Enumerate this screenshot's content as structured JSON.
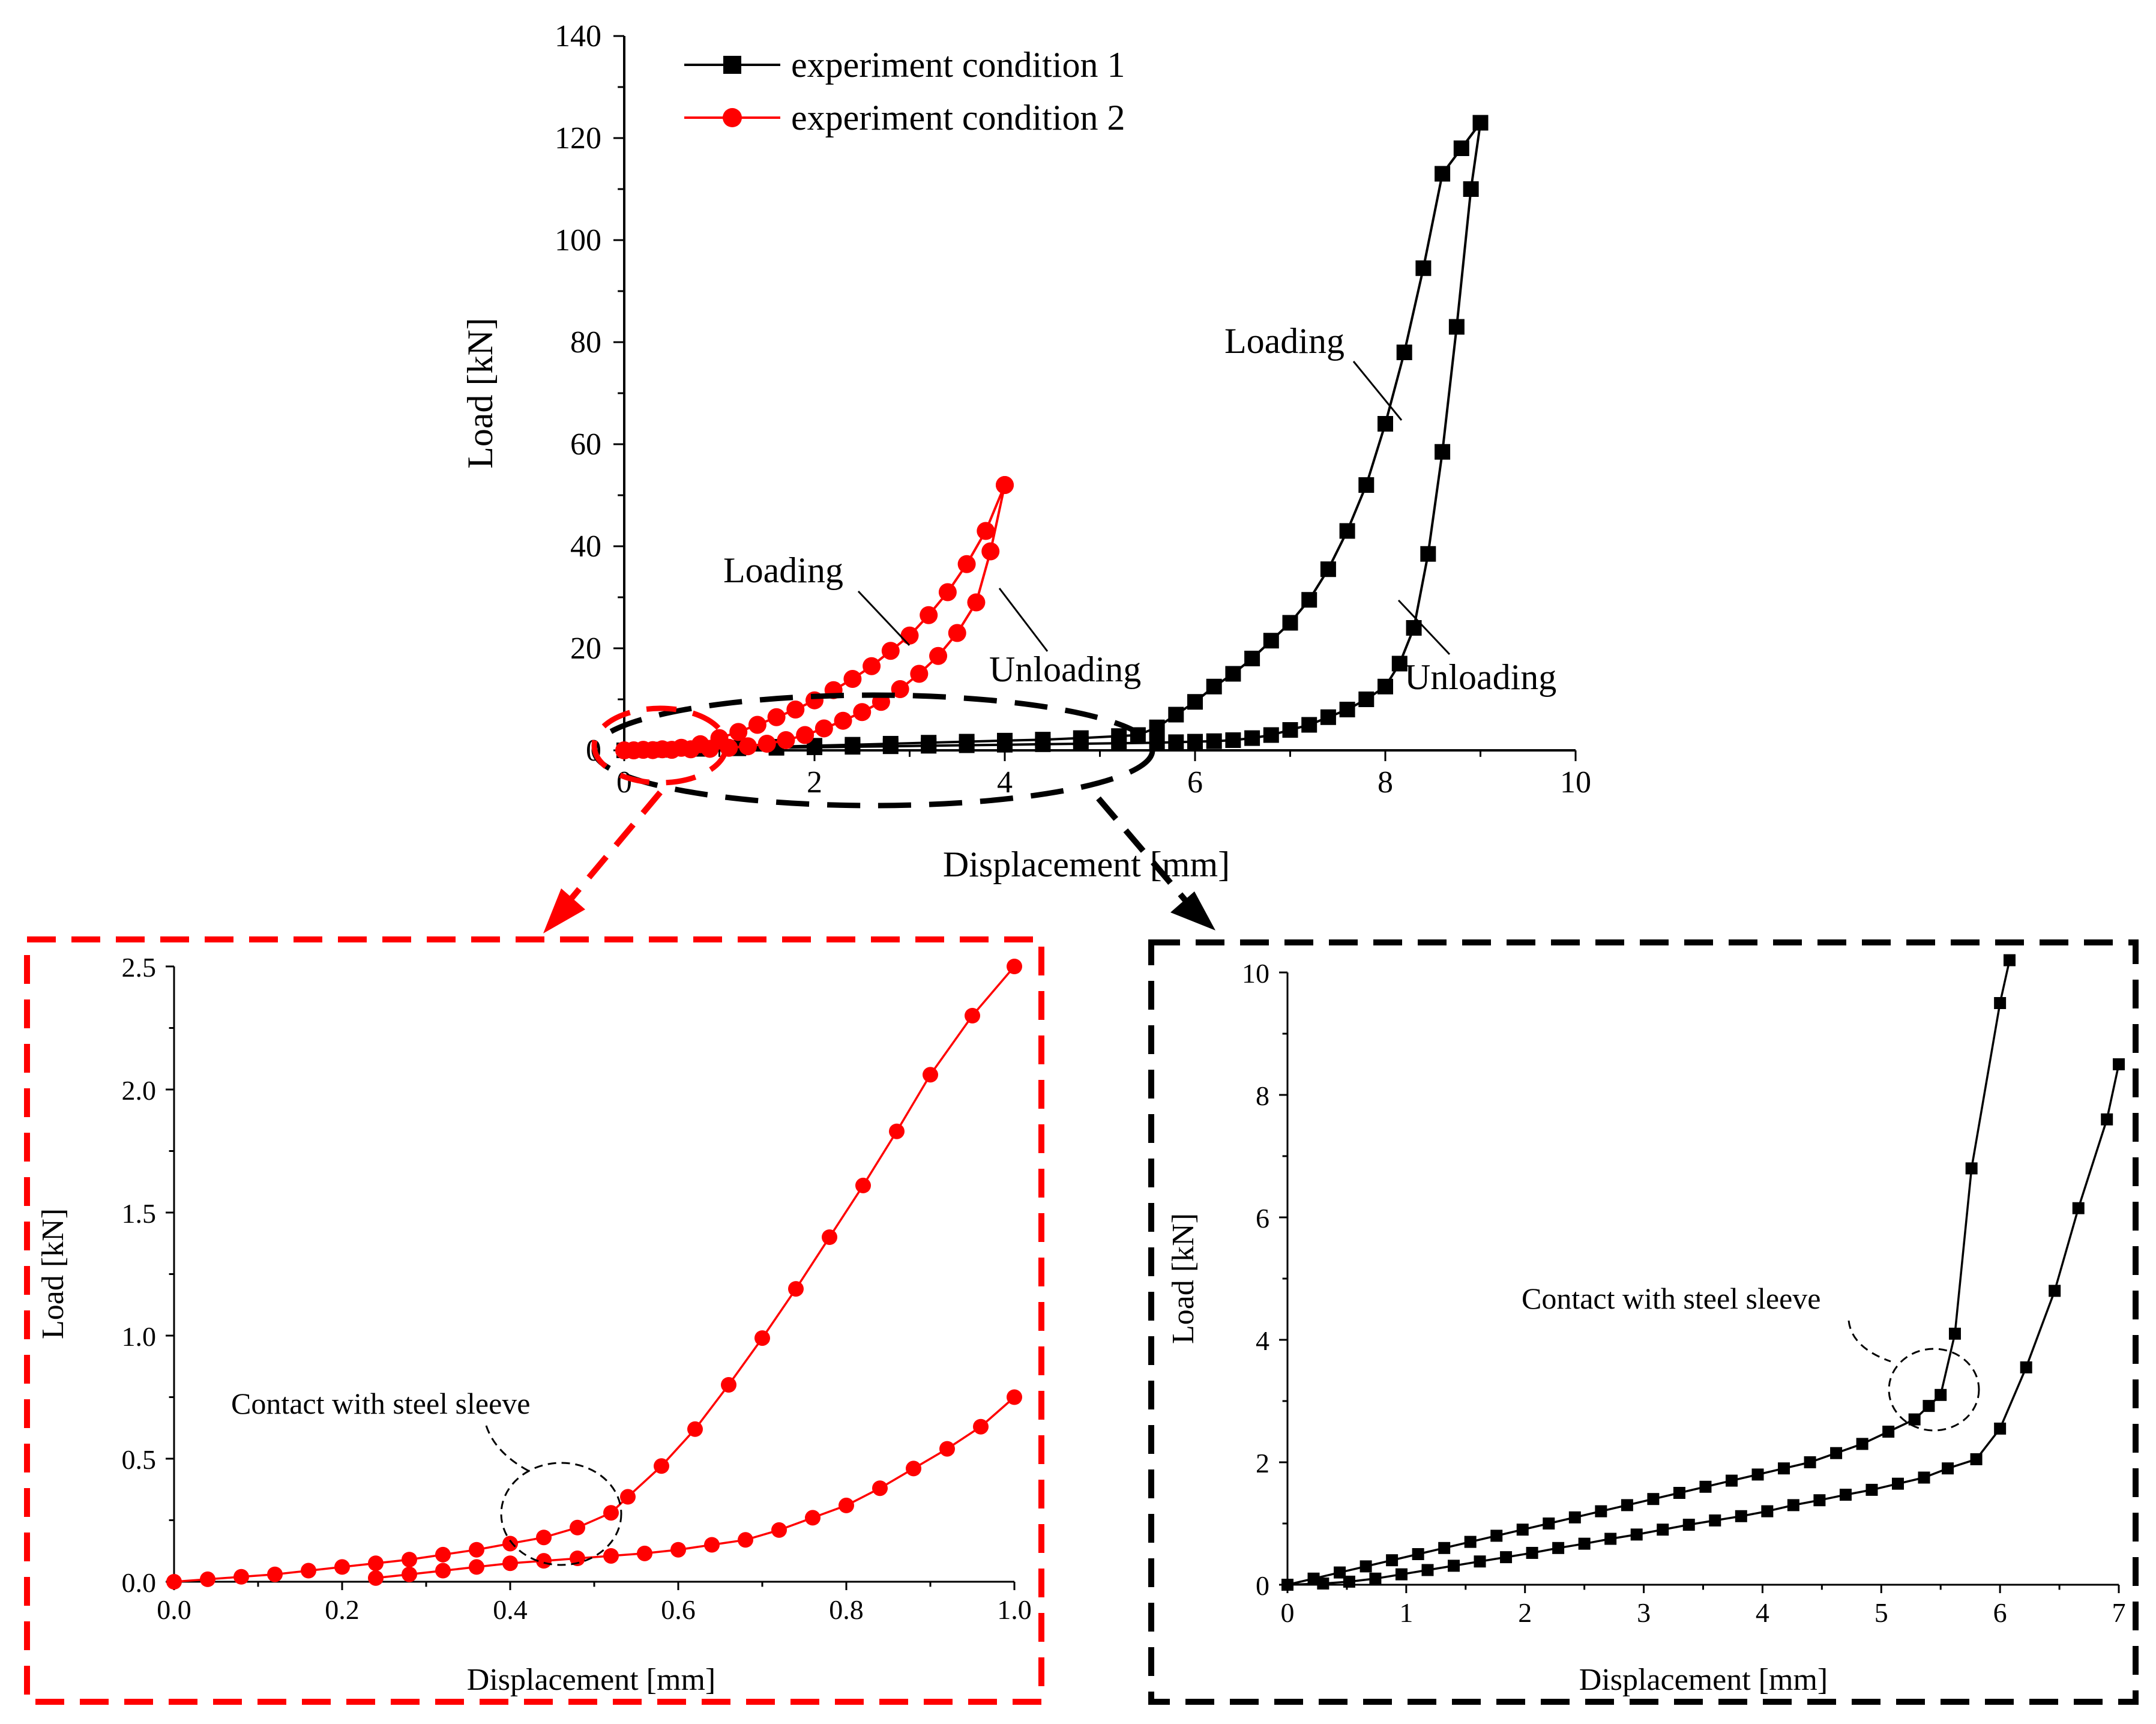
{
  "colors": {
    "series1": "#000000",
    "series2": "#ff0000",
    "axis": "#000000"
  },
  "chart_data": [
    {
      "id": "main",
      "type": "line",
      "xlabel": "Displacement [mm]",
      "ylabel": "Load [kN]",
      "xlim": [
        0,
        10
      ],
      "ylim": [
        0,
        140
      ],
      "xticks": [
        "0",
        "2",
        "4",
        "6",
        "8",
        "10"
      ],
      "yticks": [
        "0",
        "20",
        "40",
        "60",
        "80",
        "100",
        "120",
        "140"
      ],
      "legend": {
        "placement": "top-left",
        "entries": [
          "experiment condition 1",
          "experiment condition 2"
        ]
      },
      "annotations": [
        "Loading",
        "Unloading",
        "Loading",
        "Unloading"
      ],
      "series": [
        {
          "name": "experiment condition 1 (loading)",
          "x": [
            0,
            0.4,
            0.8,
            1.2,
            1.6,
            2.0,
            2.4,
            2.8,
            3.2,
            3.6,
            4.0,
            4.4,
            4.8,
            5.2,
            5.4,
            5.6,
            5.8,
            6.0,
            6.2,
            6.4,
            6.6,
            6.8,
            7.0,
            7.2,
            7.4,
            7.6,
            7.8,
            8.0,
            8.2,
            8.4,
            8.6,
            8.8,
            9.0
          ],
          "y": [
            0,
            0.1,
            0.3,
            0.5,
            0.7,
            0.9,
            1.1,
            1.3,
            1.5,
            1.7,
            1.9,
            2.1,
            2.4,
            2.8,
            3.0,
            4.5,
            7.0,
            9.5,
            12.5,
            15.0,
            18.0,
            21.5,
            25.0,
            29.5,
            35.5,
            43.0,
            52.0,
            64.0,
            78.0,
            94.5,
            113.0,
            118.0,
            123.0
          ]
        },
        {
          "name": "experiment condition 1 (unloading)",
          "x": [
            9.0,
            8.9,
            8.75,
            8.6,
            8.45,
            8.3,
            8.15,
            8.0,
            7.8,
            7.6,
            7.4,
            7.2,
            7.0,
            6.8,
            6.6,
            6.4,
            6.2,
            6.0,
            5.8,
            5.6,
            5.2,
            4.8,
            4.4,
            4.0,
            3.6,
            3.2,
            2.8,
            2.4,
            2.0,
            1.6,
            1.2,
            0.8,
            0.4,
            0.0
          ],
          "y": [
            123.0,
            110.0,
            83.0,
            58.5,
            38.5,
            24.0,
            17.0,
            12.5,
            10.0,
            8.0,
            6.5,
            5.0,
            4.0,
            3.0,
            2.4,
            2.0,
            1.8,
            1.7,
            1.6,
            1.5,
            1.4,
            1.3,
            1.2,
            1.1,
            1.0,
            0.9,
            0.8,
            0.7,
            0.6,
            0.5,
            0.4,
            0.3,
            0.15,
            0.0
          ]
        },
        {
          "name": "experiment condition 2 (loading)",
          "x": [
            0,
            0.2,
            0.4,
            0.6,
            0.8,
            1.0,
            1.2,
            1.4,
            1.6,
            1.8,
            2.0,
            2.2,
            2.4,
            2.6,
            2.8,
            3.0,
            3.2,
            3.4,
            3.6,
            3.8,
            4.0
          ],
          "y": [
            0,
            0.1,
            0.2,
            0.5,
            1.2,
            2.4,
            3.6,
            5.0,
            6.5,
            8.0,
            9.8,
            11.8,
            14.0,
            16.5,
            19.5,
            22.5,
            26.5,
            31.0,
            36.5,
            43.0,
            52.0
          ]
        },
        {
          "name": "experiment condition 2 (unloading)",
          "x": [
            4.0,
            3.85,
            3.7,
            3.5,
            3.3,
            3.1,
            2.9,
            2.7,
            2.5,
            2.3,
            2.1,
            1.9,
            1.7,
            1.5,
            1.3,
            1.1,
            0.9,
            0.7,
            0.5,
            0.3,
            0.1
          ],
          "y": [
            52.0,
            39.0,
            29.0,
            23.0,
            18.5,
            15.0,
            12.0,
            9.5,
            7.5,
            5.8,
            4.3,
            3.0,
            2.0,
            1.3,
            0.8,
            0.5,
            0.3,
            0.2,
            0.1,
            0.05,
            0.0
          ]
        }
      ]
    },
    {
      "id": "zoom-red",
      "type": "line",
      "xlabel": "Displacement [mm]",
      "ylabel": "Load [kN]",
      "xlim": [
        0,
        1.0
      ],
      "ylim": [
        0,
        2.5
      ],
      "xticks": [
        "0.0",
        "0.2",
        "0.4",
        "0.6",
        "0.8",
        "1.0"
      ],
      "yticks": [
        "0.0",
        "0.5",
        "1.0",
        "1.5",
        "2.0",
        "2.5"
      ],
      "annotation": "Contact with steel sleeve",
      "series": [
        {
          "name": "experiment condition 2 (loading)",
          "x": [
            0,
            0.04,
            0.08,
            0.12,
            0.16,
            0.2,
            0.24,
            0.28,
            0.32,
            0.36,
            0.4,
            0.44,
            0.48,
            0.52,
            0.54,
            0.58,
            0.62,
            0.66,
            0.7,
            0.74,
            0.78,
            0.82,
            0.86,
            0.9,
            0.95,
            1.0
          ],
          "y": [
            0,
            0.01,
            0.02,
            0.03,
            0.045,
            0.06,
            0.075,
            0.09,
            0.11,
            0.13,
            0.155,
            0.18,
            0.22,
            0.28,
            0.345,
            0.47,
            0.62,
            0.8,
            0.99,
            1.19,
            1.4,
            1.61,
            1.83,
            2.06,
            2.3,
            2.5
          ]
        },
        {
          "name": "experiment condition 2 (unloading)",
          "x": [
            1.0,
            0.96,
            0.92,
            0.88,
            0.84,
            0.8,
            0.76,
            0.72,
            0.68,
            0.64,
            0.6,
            0.56,
            0.52,
            0.48,
            0.44,
            0.4,
            0.36,
            0.32,
            0.28,
            0.24
          ],
          "y": [
            0.75,
            0.63,
            0.54,
            0.46,
            0.38,
            0.31,
            0.26,
            0.21,
            0.17,
            0.15,
            0.13,
            0.115,
            0.105,
            0.095,
            0.085,
            0.075,
            0.06,
            0.045,
            0.03,
            0.015
          ]
        }
      ]
    },
    {
      "id": "zoom-black",
      "type": "line",
      "xlabel": "Displacement [mm]",
      "ylabel": "Load [kN]",
      "xlim": [
        0,
        7
      ],
      "ylim": [
        0,
        10
      ],
      "xticks": [
        "0",
        "1",
        "2",
        "3",
        "4",
        "5",
        "6",
        "7"
      ],
      "yticks": [
        "0",
        "2",
        "4",
        "6",
        "8",
        "10"
      ],
      "annotation": "Contact with steel sleeve",
      "series": [
        {
          "name": "experiment condition 1 (loading)",
          "x": [
            0,
            0.22,
            0.44,
            0.66,
            0.88,
            1.1,
            1.32,
            1.54,
            1.76,
            1.98,
            2.2,
            2.42,
            2.64,
            2.86,
            3.08,
            3.3,
            3.52,
            3.74,
            3.96,
            4.18,
            4.4,
            4.62,
            4.84,
            5.06,
            5.28,
            5.4,
            5.5,
            5.62,
            5.76,
            6.0,
            6.08
          ],
          "y": [
            0,
            0.1,
            0.2,
            0.3,
            0.4,
            0.5,
            0.6,
            0.7,
            0.8,
            0.9,
            1.0,
            1.1,
            1.2,
            1.3,
            1.4,
            1.5,
            1.6,
            1.7,
            1.8,
            1.9,
            2.0,
            2.15,
            2.3,
            2.5,
            2.7,
            2.92,
            3.1,
            4.1,
            6.8,
            9.5,
            10.2
          ]
        },
        {
          "name": "experiment condition 1 (unloading)",
          "x": [
            7.0,
            6.9,
            6.66,
            6.46,
            6.22,
            6.0,
            5.8,
            5.56,
            5.36,
            5.14,
            4.92,
            4.7,
            4.48,
            4.26,
            4.04,
            3.82,
            3.6,
            3.38,
            3.16,
            2.94,
            2.72,
            2.5,
            2.28,
            2.06,
            1.84,
            1.62,
            1.4,
            1.18,
            0.96,
            0.74,
            0.52,
            0.3,
            0.0
          ],
          "y": [
            8.5,
            7.6,
            6.15,
            4.8,
            3.55,
            2.55,
            2.05,
            1.9,
            1.75,
            1.65,
            1.55,
            1.47,
            1.38,
            1.3,
            1.2,
            1.12,
            1.05,
            0.98,
            0.9,
            0.82,
            0.75,
            0.67,
            0.6,
            0.52,
            0.45,
            0.38,
            0.31,
            0.24,
            0.17,
            0.1,
            0.05,
            0.02,
            0.0
          ]
        }
      ]
    }
  ]
}
